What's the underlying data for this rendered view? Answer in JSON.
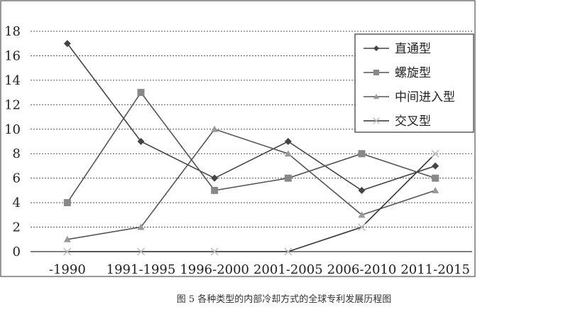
{
  "chart_data": {
    "type": "line",
    "categories": [
      "-1990",
      "1991-1995",
      "1996-2000",
      "2001-2005",
      "2006-2010",
      "2011-2015"
    ],
    "ylim": [
      0,
      18
    ],
    "yticks": [
      0,
      2,
      4,
      6,
      8,
      10,
      12,
      14,
      16,
      18
    ],
    "grid": "horizontal dashed",
    "legend_position": "top-right",
    "series": [
      {
        "name": "直通型",
        "marker": "diamond",
        "color": "#444444",
        "values": [
          17,
          9,
          6,
          9,
          5,
          7
        ]
      },
      {
        "name": "螺旋型",
        "marker": "square",
        "color": "#555555",
        "values": [
          4,
          13,
          5,
          6,
          8,
          6
        ]
      },
      {
        "name": "中间进入型",
        "marker": "triangle",
        "color": "#555555",
        "values": [
          1,
          2,
          10,
          8,
          3,
          5
        ]
      },
      {
        "name": "交叉型",
        "marker": "x",
        "color": "#333333",
        "values": [
          0,
          0,
          0,
          0,
          2,
          8
        ]
      }
    ]
  },
  "caption": "图 5 各种类型的内部冷却方式的全球专利发展历程图"
}
